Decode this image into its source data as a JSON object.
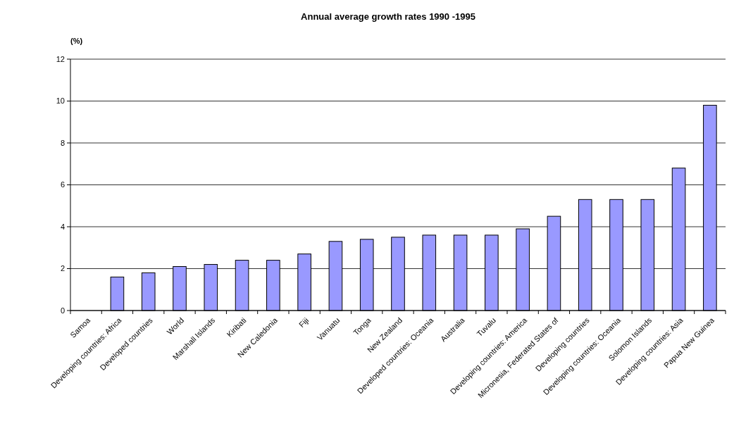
{
  "chart_data": {
    "type": "bar",
    "title": "Annual average growth rates 1990 -1995",
    "ylabel": "(%)",
    "categories": [
      "Samoa",
      "Developing countries: Africa",
      "Developed countries",
      "World",
      "Marshall Islands",
      "Kiribati",
      "New Caledonia",
      "Fiji",
      "Vanuatu",
      "Tonga",
      "New Zealand",
      "Developed countries: Oceania",
      "Australia",
      "Tuvalu",
      "Developing countries: America",
      "Micronesia, Federated States of",
      "Developing countries",
      "Developing countries: Oceania",
      "Solomon Islands",
      "Developing countries: Asia",
      "Papua New Guinea"
    ],
    "values": [
      null,
      1.6,
      1.8,
      2.1,
      2.2,
      2.4,
      2.4,
      2.7,
      3.3,
      3.4,
      3.5,
      3.6,
      3.6,
      3.6,
      3.9,
      4.5,
      5.3,
      5.3,
      5.3,
      6.8,
      9.8
    ],
    "color": "#9999ff",
    "ylim": [
      0,
      12
    ],
    "yticks": [
      0,
      2,
      4,
      6,
      8,
      10,
      12
    ],
    "grid": "y"
  }
}
